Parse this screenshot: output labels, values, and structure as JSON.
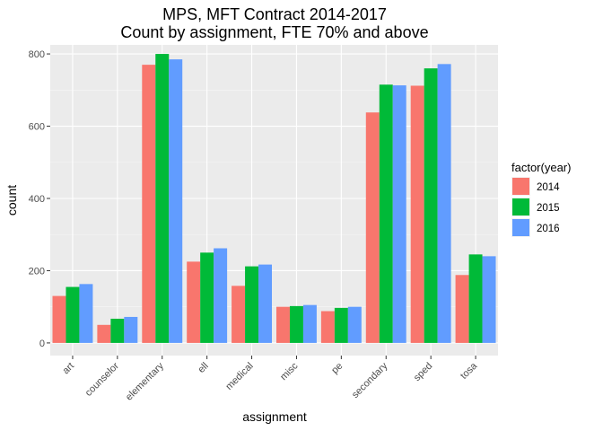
{
  "chart_data": {
    "type": "bar",
    "title": "MPS, MFT Contract 2014-2017",
    "subtitle": "Count by assignment, FTE 70% and above",
    "xlabel": "assignment",
    "ylabel": "count",
    "ylim": [
      -35,
      825
    ],
    "yticks": [
      0,
      200,
      400,
      600,
      800
    ],
    "grid": true,
    "categories": [
      "art",
      "counselor",
      "elementary",
      "ell",
      "medical",
      "misc",
      "pe",
      "secondary",
      "sped",
      "tosa"
    ],
    "legend": {
      "title": "factor(year)",
      "placement": "right"
    },
    "series": [
      {
        "name": "2014",
        "color": "#F8766D",
        "values": [
          130,
          50,
          770,
          225,
          158,
          100,
          88,
          638,
          712,
          188
        ]
      },
      {
        "name": "2015",
        "color": "#00BA38",
        "values": [
          155,
          67,
          800,
          250,
          212,
          102,
          97,
          715,
          760,
          245
        ]
      },
      {
        "name": "2016",
        "color": "#619CFF",
        "values": [
          163,
          72,
          785,
          262,
          217,
          105,
          100,
          713,
          772,
          240
        ]
      }
    ]
  }
}
